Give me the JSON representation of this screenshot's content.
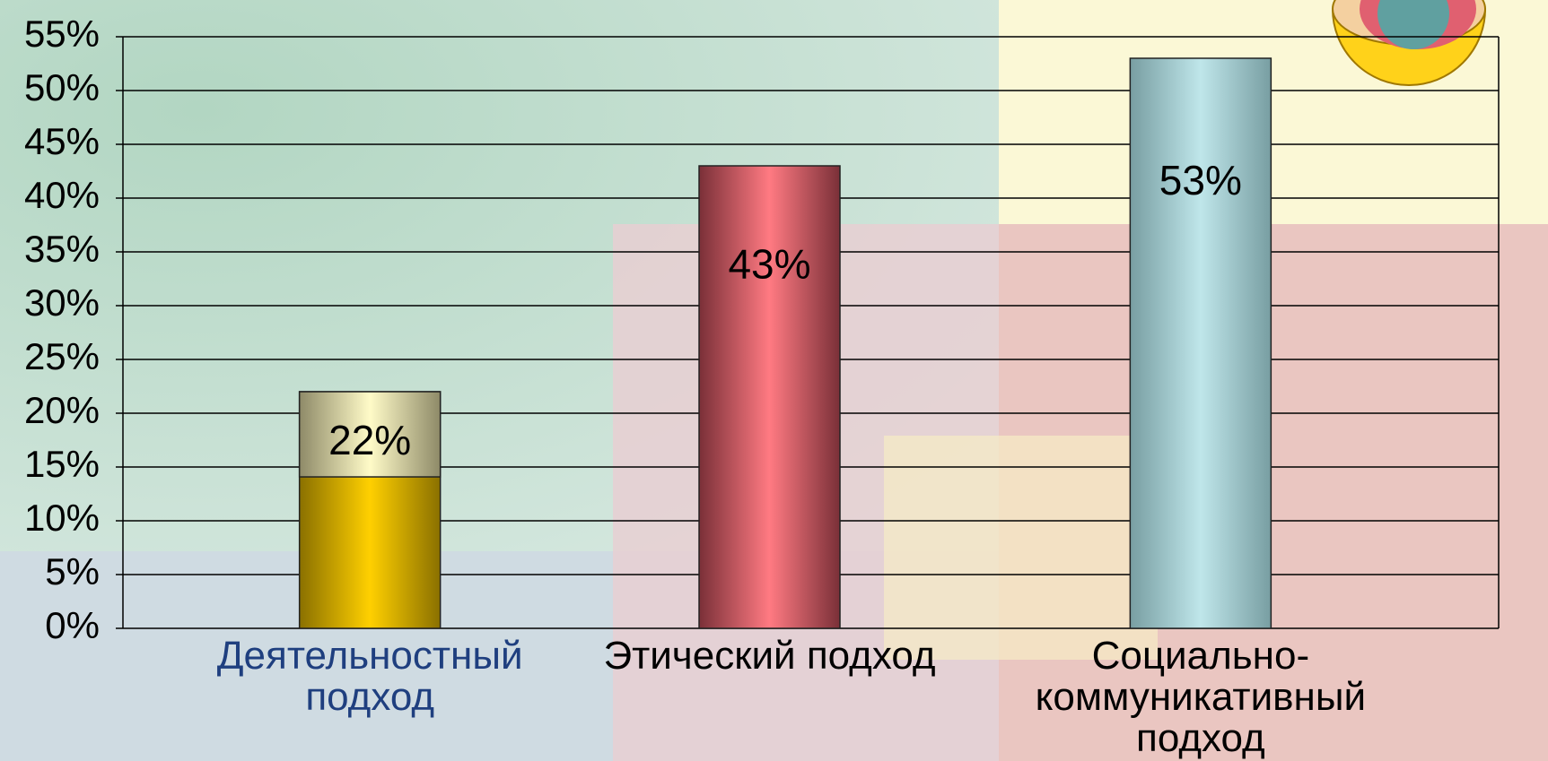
{
  "chart_data": {
    "type": "bar",
    "categories": [
      "Деятельностный подход",
      "Этический подход",
      "Социально-коммуникативный подход"
    ],
    "values": [
      22,
      43,
      53
    ],
    "value_labels": [
      "22%",
      "43%",
      "53%"
    ],
    "colors": [
      "#e8c000",
      "#e06070",
      "#a8cfd3"
    ],
    "ylim": [
      0,
      55
    ],
    "yticks": [
      {
        "value": 0,
        "label": "0%"
      },
      {
        "value": 5,
        "label": "5%"
      },
      {
        "value": 10,
        "label": "10%"
      },
      {
        "value": 15,
        "label": "15%"
      },
      {
        "value": 20,
        "label": "20%"
      },
      {
        "value": 25,
        "label": "25%"
      },
      {
        "value": 30,
        "label": "30%"
      },
      {
        "value": 35,
        "label": "35%"
      },
      {
        "value": 40,
        "label": "40%"
      },
      {
        "value": 45,
        "label": "45%"
      },
      {
        "value": 50,
        "label": "50%"
      },
      {
        "value": 55,
        "label": "55%"
      }
    ],
    "grid": true
  }
}
